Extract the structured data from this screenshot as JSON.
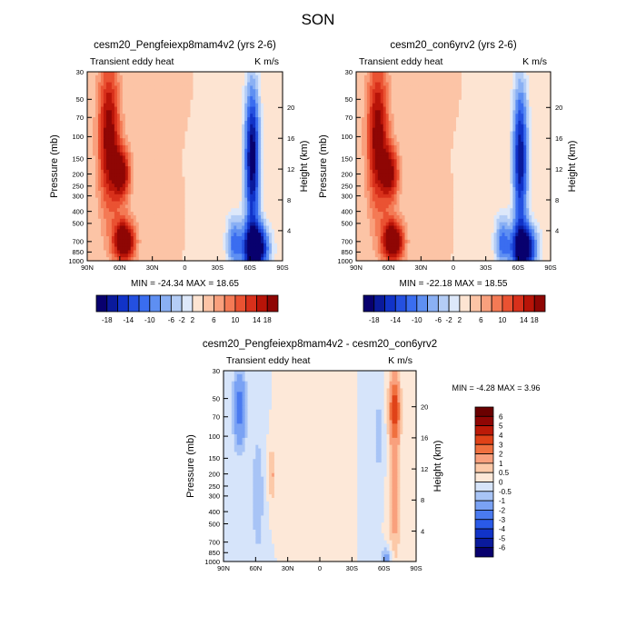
{
  "figure_title": "SON",
  "chart_data": [
    {
      "type": "heatmap",
      "panel": "left",
      "title": "cesm20_Pengfeiexp8mam4v2 (yrs 2-6)",
      "subtitle_left": "Transient eddy heat",
      "subtitle_right": "K m/s",
      "xlabel": "",
      "ylabel": "Pressure (mb)",
      "ylabel_right": "Height (km)",
      "x_ticks": [
        "90N",
        "60N",
        "30N",
        "0",
        "30S",
        "60S",
        "90S"
      ],
      "y_ticks": [
        "30",
        "50",
        "70",
        "100",
        "150",
        "200",
        "250",
        "300",
        "400",
        "500",
        "700",
        "850",
        "1000"
      ],
      "height_ticks": [
        "4",
        "8",
        "12",
        "16",
        "20"
      ],
      "min": -24.34,
      "max": 18.65,
      "stats_text": "MIN = -24.34   MAX =  18.65",
      "colorbar_labels": [
        "-18",
        "-14",
        "-10",
        "-6",
        "-2",
        "2",
        "6",
        "10",
        "14",
        "18"
      ],
      "field": [
        {
          "lat": 70,
          "p": 100,
          "value": 14,
          "wlat": 10,
          "wp": 1.4
        },
        {
          "lat": 56,
          "p": 700,
          "value": 18,
          "wlat": 10,
          "wp": 0.4
        },
        {
          "lat": 58,
          "p": 200,
          "value": 13,
          "wlat": 8,
          "wp": 0.5
        },
        {
          "lat": -65,
          "p": 800,
          "value": -24,
          "wlat": 12,
          "wp": 0.45
        },
        {
          "lat": -62,
          "p": 150,
          "value": -20,
          "wlat": 7,
          "wp": 1.4
        },
        {
          "lat": -45,
          "p": 700,
          "value": -10,
          "wlat": 7,
          "wp": 0.5
        }
      ]
    },
    {
      "type": "heatmap",
      "panel": "right",
      "title": "cesm20_con6yrv2 (yrs 2-6)",
      "subtitle_left": "Transient eddy heat",
      "subtitle_right": "K m/s",
      "xlabel": "",
      "ylabel": "Pressure (mb)",
      "ylabel_right": "Height (km)",
      "x_ticks": [
        "90N",
        "60N",
        "30N",
        "0",
        "30S",
        "60S",
        "90S"
      ],
      "y_ticks": [
        "30",
        "50",
        "70",
        "100",
        "150",
        "200",
        "250",
        "300",
        "400",
        "500",
        "700",
        "850",
        "1000"
      ],
      "height_ticks": [
        "4",
        "8",
        "12",
        "16",
        "20"
      ],
      "min": -22.18,
      "max": 18.55,
      "stats_text": "MIN = -22.18   MAX =  18.55",
      "colorbar_labels": [
        "-18",
        "-14",
        "-10",
        "-6",
        "-2",
        "2",
        "6",
        "10",
        "14",
        "18"
      ],
      "field": [
        {
          "lat": 70,
          "p": 100,
          "value": 14,
          "wlat": 10,
          "wp": 1.4
        },
        {
          "lat": 56,
          "p": 700,
          "value": 18,
          "wlat": 10,
          "wp": 0.4
        },
        {
          "lat": 58,
          "p": 200,
          "value": 12,
          "wlat": 8,
          "wp": 0.5
        },
        {
          "lat": -65,
          "p": 800,
          "value": -22,
          "wlat": 12,
          "wp": 0.45
        },
        {
          "lat": -62,
          "p": 150,
          "value": -18,
          "wlat": 7,
          "wp": 1.4
        },
        {
          "lat": -45,
          "p": 700,
          "value": -10,
          "wlat": 7,
          "wp": 0.5
        }
      ]
    },
    {
      "type": "heatmap",
      "panel": "difference",
      "title": "cesm20_Pengfeiexp8mam4v2 - cesm20_con6yrv2",
      "subtitle_left": "Transient eddy heat",
      "subtitle_right": "K m/s",
      "xlabel": "",
      "ylabel": "Pressure (mb)",
      "ylabel_right": "Height (km)",
      "x_ticks": [
        "90N",
        "60N",
        "30N",
        "0",
        "30S",
        "60S",
        "90S"
      ],
      "y_ticks": [
        "30",
        "50",
        "70",
        "100",
        "150",
        "200",
        "250",
        "300",
        "400",
        "500",
        "700",
        "850",
        "1000"
      ],
      "height_ticks": [
        "4",
        "8",
        "12",
        "16",
        "20"
      ],
      "min": -4.28,
      "max": 3.96,
      "stats_text": "MIN =  -4.28   MAX =   3.96",
      "colorbar_labels": [
        "6",
        "5",
        "4",
        "3",
        "2",
        "1",
        "0.5",
        "0",
        "-0.5",
        "-1",
        "-2",
        "-3",
        "-4",
        "-5",
        "-6"
      ],
      "field": [
        {
          "lat": -70,
          "p": 60,
          "value": 3.5,
          "wlat": 5,
          "wp": 0.6
        },
        {
          "lat": -70,
          "p": 300,
          "value": 1.5,
          "wlat": 5,
          "wp": 1.2
        },
        {
          "lat": 75,
          "p": 60,
          "value": -2.5,
          "wlat": 6,
          "wp": 0.7
        },
        {
          "lat": 45,
          "p": 200,
          "value": 1.2,
          "wlat": 3,
          "wp": 0.5
        },
        {
          "lat": 58,
          "p": 300,
          "value": -0.9,
          "wlat": 6,
          "wp": 1.2
        },
        {
          "lat": -55,
          "p": 100,
          "value": -0.8,
          "wlat": 5,
          "wp": 0.8
        },
        {
          "lat": 15,
          "p": 150,
          "value": 0.5,
          "wlat": 12,
          "wp": 1.0
        },
        {
          "lat": -62,
          "p": 960,
          "value": -1.5,
          "wlat": 5,
          "wp": 0.2
        }
      ]
    }
  ]
}
